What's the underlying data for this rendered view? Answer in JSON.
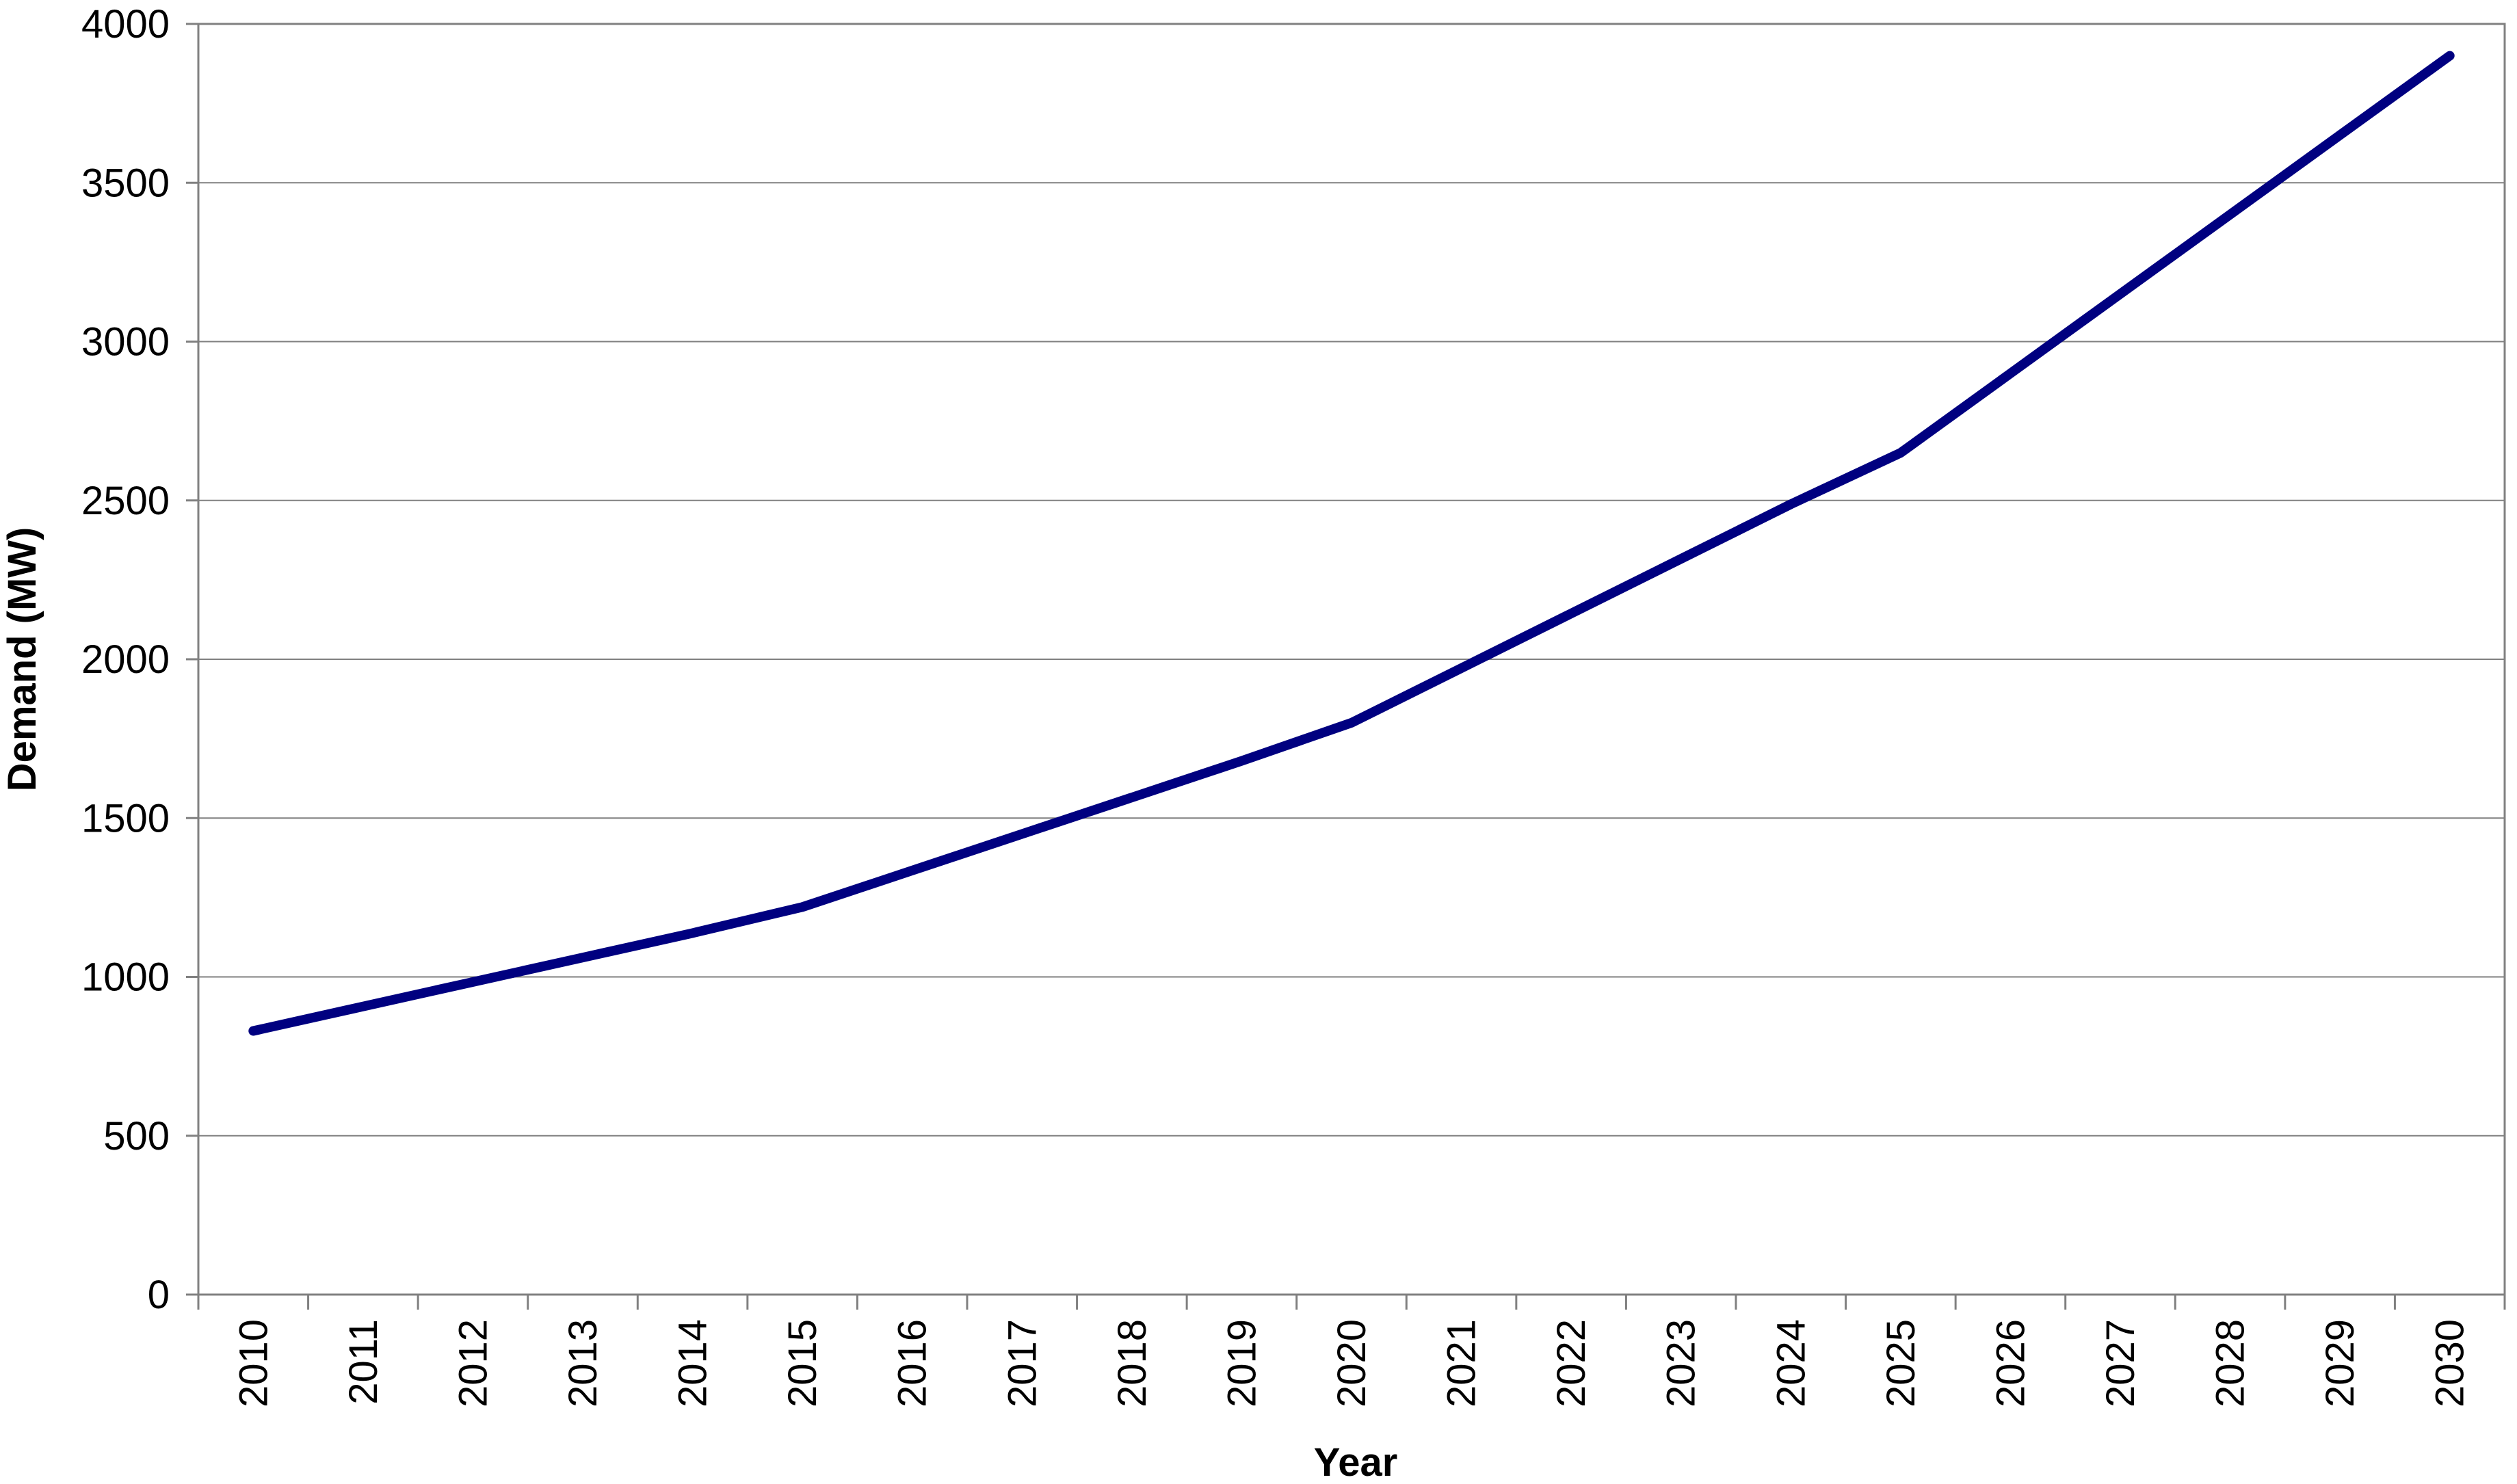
{
  "chart_data": {
    "type": "line",
    "title": "",
    "xlabel": "Year",
    "ylabel": "Demand (MW)",
    "ylim": [
      0,
      4000
    ],
    "yticks": [
      "0",
      "500",
      "1000",
      "1500",
      "2000",
      "2500",
      "3000",
      "3500",
      "4000"
    ],
    "grid": true,
    "legend": "none",
    "categories": [
      "2010",
      "2011",
      "2012",
      "2013",
      "2014",
      "2015",
      "2016",
      "2017",
      "2018",
      "2019",
      "2020",
      "2021",
      "2022",
      "2023",
      "2024",
      "2025",
      "2026",
      "2027",
      "2028",
      "2029",
      "2030"
    ],
    "series": [
      {
        "color": "#000080",
        "values": [
          830,
          907,
          984,
          1061,
          1138,
          1220,
          1335,
          1450,
          1565,
          1680,
          1800,
          1972,
          2144,
          2316,
          2488,
          2650,
          2900,
          3150,
          3400,
          3650,
          3900
        ]
      }
    ]
  }
}
